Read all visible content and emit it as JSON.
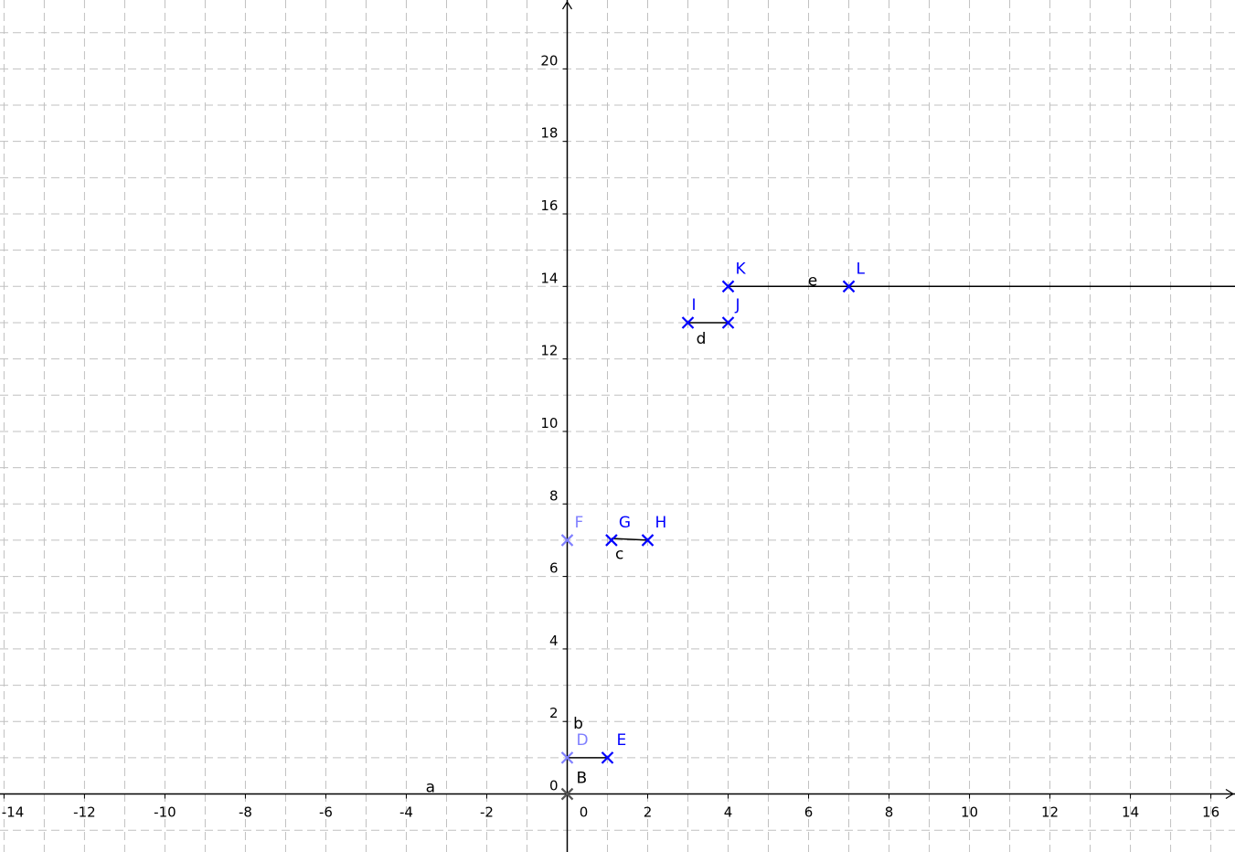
{
  "chart_data": {
    "type": "scatter",
    "xlim": [
      -14.1,
      16.6
    ],
    "ylim": [
      -1.6,
      21.9
    ],
    "grid": true,
    "x_ticks": [
      -14,
      -12,
      -10,
      -8,
      -6,
      -4,
      -2,
      0,
      2,
      4,
      6,
      8,
      10,
      12,
      14,
      16
    ],
    "x_tick_labels": [
      "-14",
      "-12",
      "-10",
      "-8",
      "-6",
      "-4",
      "-2",
      "0",
      "2",
      "4",
      "6",
      "8",
      "10",
      "12",
      "14",
      "16"
    ],
    "y_ticks": [
      0,
      2,
      4,
      6,
      8,
      10,
      12,
      14,
      16,
      18,
      20
    ],
    "y_tick_labels": [
      "0",
      "2",
      "4",
      "6",
      "8",
      "10",
      "12",
      "14",
      "16",
      "18",
      "20"
    ],
    "points": [
      {
        "name": "B",
        "x": 0,
        "y": 0,
        "color": "#555555"
      },
      {
        "name": "D",
        "x": 0,
        "y": 1,
        "color": "#7f7fff"
      },
      {
        "name": "E",
        "x": 1,
        "y": 1,
        "color": "#0000ff"
      },
      {
        "name": "F",
        "x": 0,
        "y": 7,
        "color": "#7f7fff"
      },
      {
        "name": "G",
        "x": 1.1,
        "y": 7,
        "color": "#0000ff"
      },
      {
        "name": "H",
        "x": 2,
        "y": 7,
        "color": "#0000ff"
      },
      {
        "name": "I",
        "x": 3,
        "y": 13,
        "color": "#0000ff"
      },
      {
        "name": "J",
        "x": 4,
        "y": 13,
        "color": "#0000ff"
      },
      {
        "name": "K",
        "x": 4,
        "y": 14,
        "color": "#0000ff"
      },
      {
        "name": "L",
        "x": 7,
        "y": 14,
        "color": "#0000ff"
      }
    ],
    "objects": [
      {
        "name": "a",
        "kind": "line",
        "from": [
          -20,
          0
        ],
        "to": [
          20,
          0
        ]
      },
      {
        "name": "b",
        "kind": "segment",
        "from": [
          0,
          1
        ],
        "to": [
          1,
          1
        ]
      },
      {
        "name": "c",
        "kind": "segment",
        "from": [
          1.1,
          7.05
        ],
        "to": [
          2,
          7
        ]
      },
      {
        "name": "d",
        "kind": "segment",
        "from": [
          3,
          13
        ],
        "to": [
          4,
          13
        ]
      },
      {
        "name": "e",
        "kind": "ray",
        "from": [
          4,
          14
        ],
        "to": [
          20,
          14
        ]
      }
    ]
  },
  "colors": {
    "grid": "#c0c0c0",
    "axis": "#000000",
    "point_blue": "#0000ff",
    "point_light_blue": "#7f7fff",
    "point_gray": "#555555"
  }
}
